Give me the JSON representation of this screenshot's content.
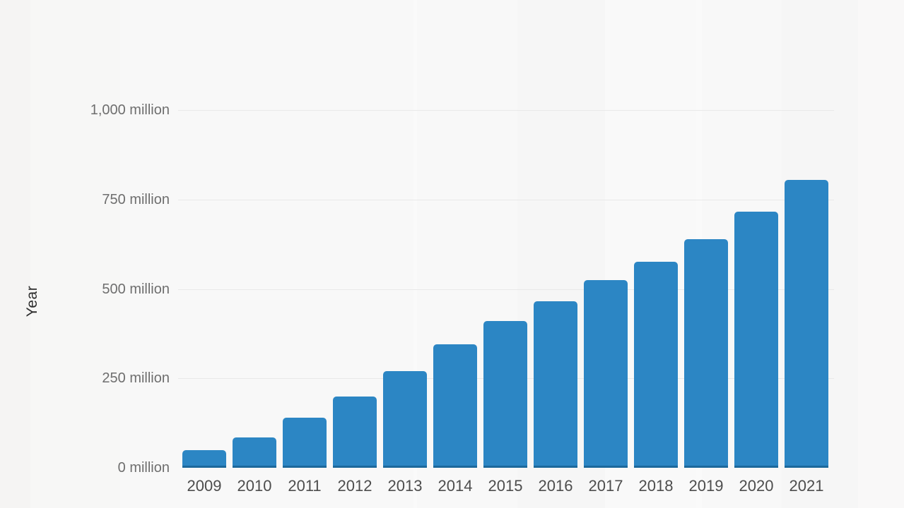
{
  "chart_data": {
    "type": "bar",
    "title": "",
    "xlabel": "",
    "ylabel": "Year",
    "unit": "million",
    "categories": [
      "2009",
      "2010",
      "2011",
      "2012",
      "2013",
      "2014",
      "2015",
      "2016",
      "2017",
      "2018",
      "2019",
      "2020",
      "2021"
    ],
    "values": [
      50,
      85,
      140,
      200,
      270,
      345,
      410,
      465,
      525,
      575,
      640,
      715,
      805
    ],
    "ylim": [
      0,
      1000
    ],
    "yticks": [
      {
        "value": 0,
        "label": "0 million"
      },
      {
        "value": 250,
        "label": "250 million"
      },
      {
        "value": 500,
        "label": "500 million"
      },
      {
        "value": 750,
        "label": "750 million"
      },
      {
        "value": 1000,
        "label": "1,000 million"
      }
    ],
    "grid": "horizontal",
    "legend": false,
    "colors": {
      "bar": "#2c86c4",
      "bar_bottom_edge": "#1a6fa4",
      "gridline": "#e9e9e9",
      "y_tick_text": "#6e6e6e",
      "x_tick_text": "#4d4d4d",
      "ylabel_text": "#2d2d2d",
      "background": "#f8f8f8"
    }
  }
}
